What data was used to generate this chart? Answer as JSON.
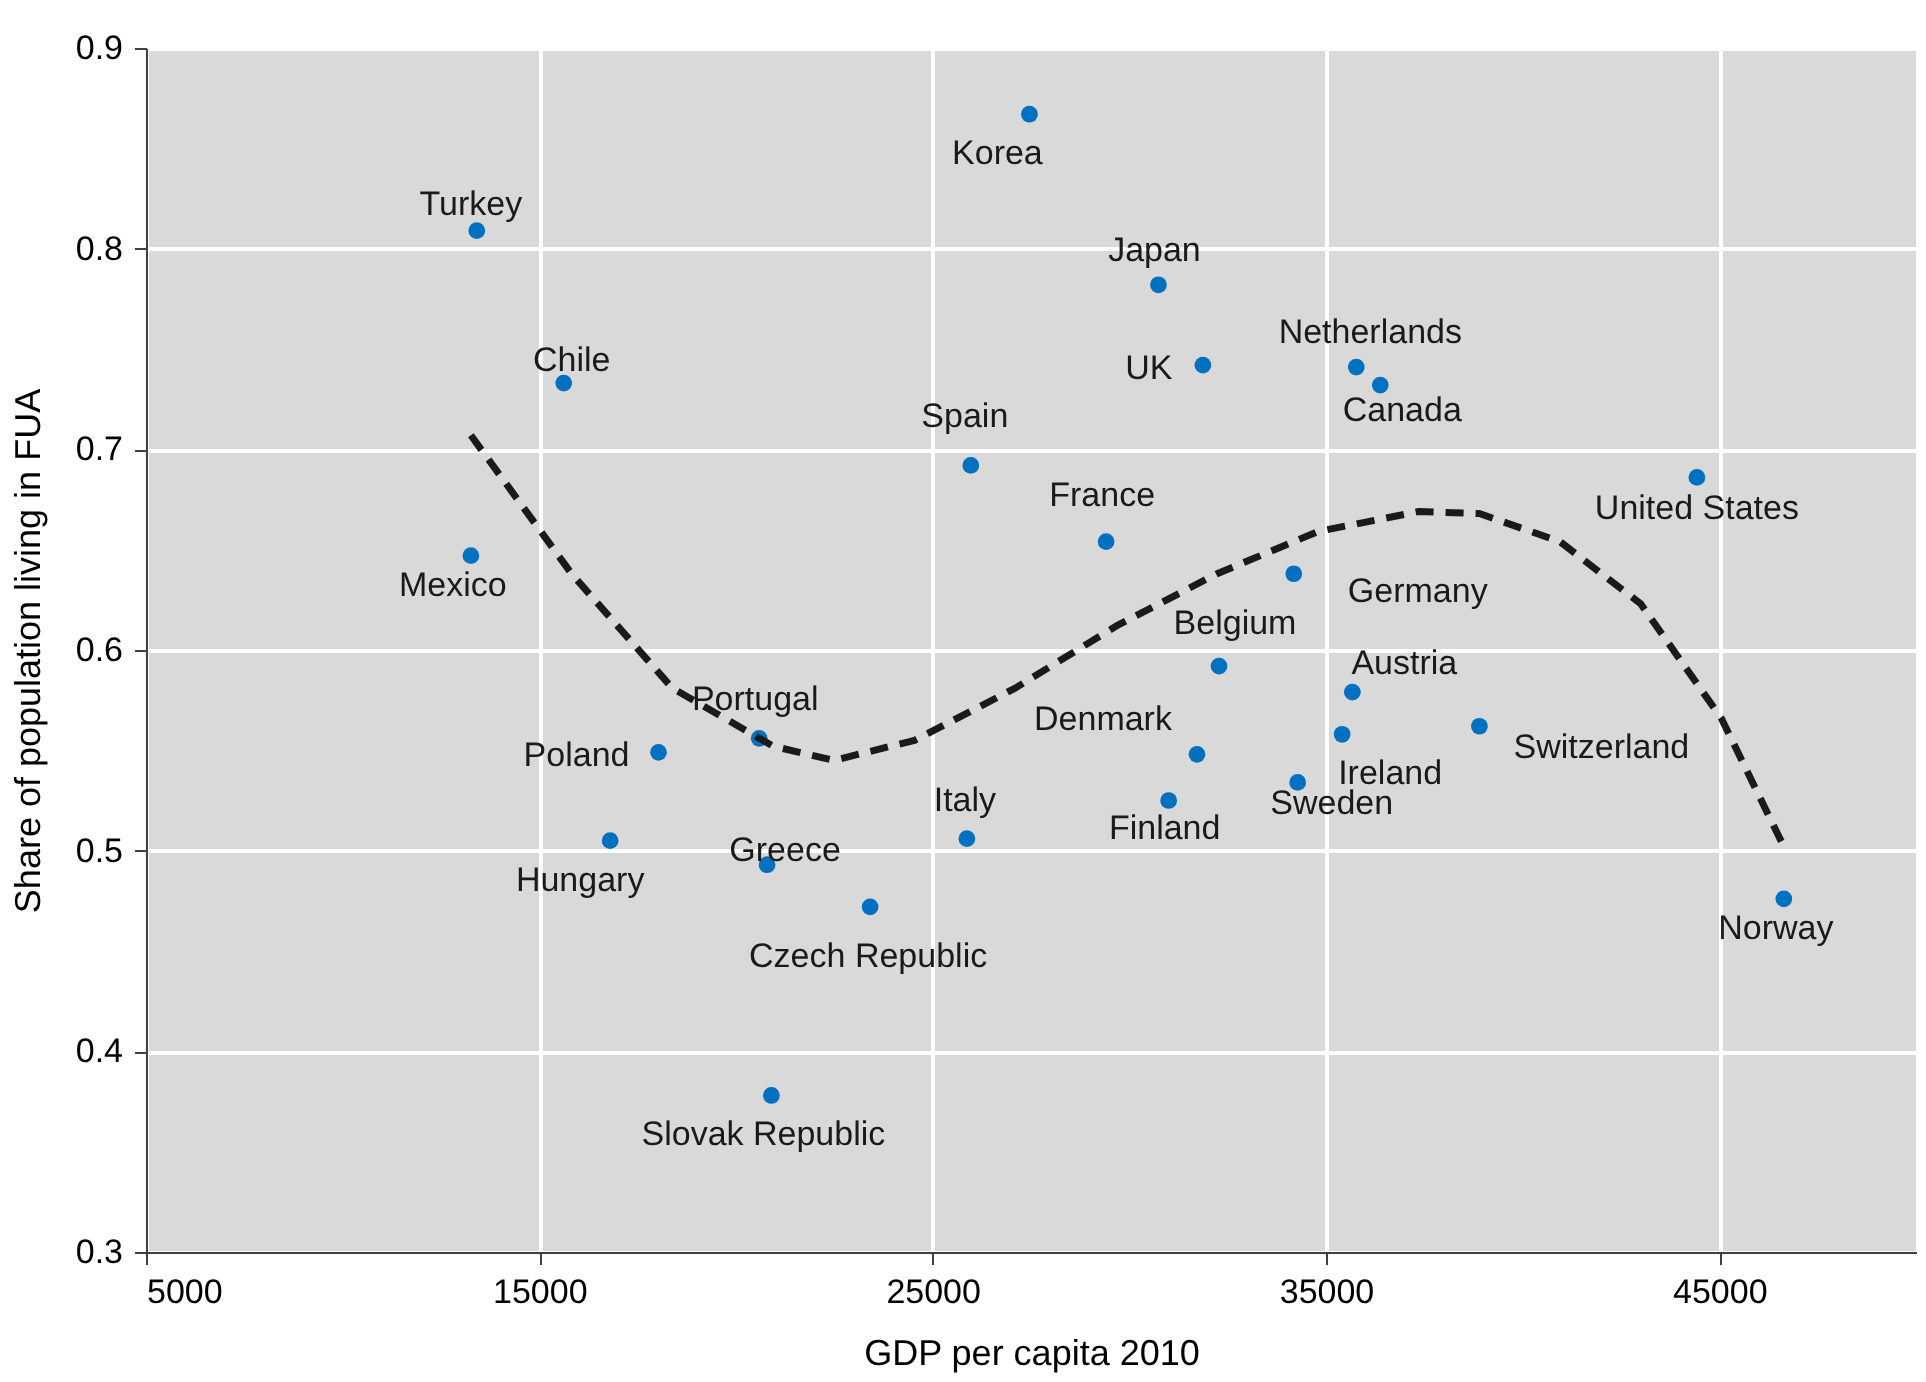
{
  "chart_data": {
    "type": "scatter",
    "xlabel": "GDP per capita 2010",
    "ylabel": "Share of population living in FUA",
    "xlim": [
      5000,
      50000
    ],
    "ylim": [
      0.3,
      0.9
    ],
    "xticks": [
      5000,
      15000,
      25000,
      35000,
      45000
    ],
    "yticks": [
      0.3,
      0.4,
      0.5,
      0.6,
      0.7,
      0.8,
      0.9
    ],
    "grid": true,
    "legend": false,
    "marker": "circle",
    "series": [
      {
        "color": "#0070c0",
        "x": [
          13410,
          15620,
          13260,
          27460,
          30740,
          31870,
          35770,
          36380,
          25970,
          29410,
          44430,
          34180,
          32280,
          35670,
          18030,
          20590,
          31720,
          35410,
          38900,
          34280,
          31000,
          16800,
          25870,
          20790,
          23410,
          46640,
          20900
        ],
        "values": [
          0.809,
          0.733,
          0.647,
          0.867,
          0.782,
          0.742,
          0.741,
          0.732,
          0.692,
          0.654,
          0.686,
          0.638,
          0.592,
          0.579,
          0.549,
          0.556,
          0.548,
          0.558,
          0.562,
          0.534,
          0.525,
          0.505,
          0.506,
          0.493,
          0.472,
          0.476,
          0.378
        ]
      },
      {
        "type": "line",
        "color": "#1a1a1a",
        "line_style": "dashed",
        "marker": "none",
        "x": [
          13260,
          15820,
          18380,
          20950,
          22490,
          24540,
          27100,
          29670,
          32230,
          34790,
          37360,
          38900,
          40950,
          43000,
          45050,
          46690
        ],
        "values": [
          0.707,
          0.638,
          0.581,
          0.552,
          0.545,
          0.555,
          0.581,
          0.612,
          0.638,
          0.659,
          0.669,
          0.668,
          0.654,
          0.623,
          0.566,
          0.5
        ]
      }
    ],
    "annotations": [
      {
        "text": "Turkey",
        "x": 13410,
        "y": 0.809
      },
      {
        "text": "Chile",
        "x": 15620,
        "y": 0.733
      },
      {
        "text": "Mexico",
        "x": 13260,
        "y": 0.647
      },
      {
        "text": "Korea",
        "x": 27460,
        "y": 0.867
      },
      {
        "text": "Japan",
        "x": 30740,
        "y": 0.782
      },
      {
        "text": "UK",
        "x": 31870,
        "y": 0.742
      },
      {
        "text": "Netherlands",
        "x": 35770,
        "y": 0.741
      },
      {
        "text": "Canada",
        "x": 36380,
        "y": 0.732
      },
      {
        "text": "Spain",
        "x": 25970,
        "y": 0.692
      },
      {
        "text": "France",
        "x": 29410,
        "y": 0.654
      },
      {
        "text": "United States",
        "x": 44430,
        "y": 0.686
      },
      {
        "text": "Germany",
        "x": 34180,
        "y": 0.638
      },
      {
        "text": "Belgium",
        "x": 32280,
        "y": 0.592
      },
      {
        "text": "Austria",
        "x": 35670,
        "y": 0.579
      },
      {
        "text": "Poland",
        "x": 18030,
        "y": 0.549
      },
      {
        "text": "Portugal",
        "x": 20590,
        "y": 0.556
      },
      {
        "text": "Denmark",
        "x": 31720,
        "y": 0.548
      },
      {
        "text": "Ireland",
        "x": 35410,
        "y": 0.558
      },
      {
        "text": "Switzerland",
        "x": 38900,
        "y": 0.562
      },
      {
        "text": "Sweden",
        "x": 34280,
        "y": 0.534
      },
      {
        "text": "Finland",
        "x": 31000,
        "y": 0.525
      },
      {
        "text": "Hungary",
        "x": 16800,
        "y": 0.505
      },
      {
        "text": "Italy",
        "x": 25870,
        "y": 0.506
      },
      {
        "text": "Greece",
        "x": 20790,
        "y": 0.493
      },
      {
        "text": "Czech Republic",
        "x": 23410,
        "y": 0.472
      },
      {
        "text": "Norway",
        "x": 46640,
        "y": 0.476
      },
      {
        "text": "Slovak Republic",
        "x": 20900,
        "y": 0.378
      }
    ]
  }
}
